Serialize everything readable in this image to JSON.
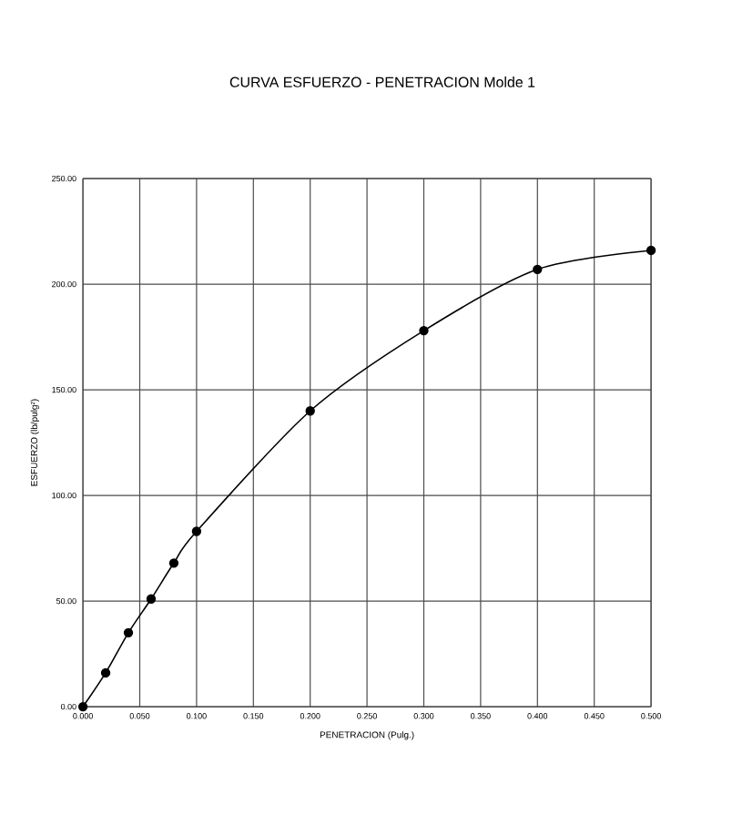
{
  "chart_data": {
    "type": "line",
    "title": "CURVA ESFUERZO - PENETRACION  Molde 1",
    "xlabel": "PENETRACION (Pulg.)",
    "ylabel": "ESFUERZO (lb/pulg²)",
    "x": [
      0,
      0.02,
      0.04,
      0.06,
      0.08,
      0.1,
      0.2,
      0.3,
      0.4,
      0.5
    ],
    "series": [
      {
        "color": "#000000",
        "values": [
          0,
          16,
          35,
          51,
          68,
          83,
          140,
          178,
          207,
          216
        ]
      }
    ],
    "xlim": [
      0,
      0.5
    ],
    "xticks": [
      {
        "value": 0,
        "label": "0.000"
      },
      {
        "value": 0.05,
        "label": "0.050"
      },
      {
        "value": 0.1,
        "label": "0.100"
      },
      {
        "value": 0.15,
        "label": "0.150"
      },
      {
        "value": 0.2,
        "label": "0.200"
      },
      {
        "value": 0.25,
        "label": "0.250"
      },
      {
        "value": 0.3,
        "label": "0.300"
      },
      {
        "value": 0.35,
        "label": "0.350"
      },
      {
        "value": 0.4,
        "label": "0.400"
      },
      {
        "value": 0.45,
        "label": "0.450"
      },
      {
        "value": 0.5,
        "label": "0.500"
      }
    ],
    "ylim": [
      0,
      250
    ],
    "yticks": [
      {
        "value": 0,
        "label": "0.00"
      },
      {
        "value": 50,
        "label": "50.00"
      },
      {
        "value": 100,
        "label": "100.00"
      },
      {
        "value": 150,
        "label": "150.00"
      },
      {
        "value": 200,
        "label": "200.00"
      },
      {
        "value": 250,
        "label": "250.00"
      }
    ],
    "grid": true,
    "marker": "circle",
    "line_style": "solid"
  }
}
